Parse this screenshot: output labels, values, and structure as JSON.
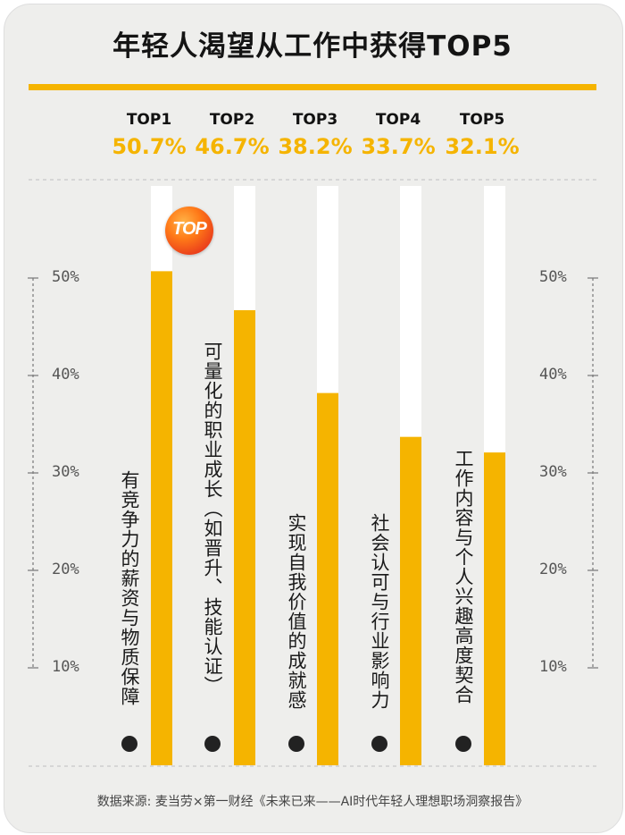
{
  "title": "年轻人渴望从工作中获得TOP5",
  "badge": "TOP",
  "source": "数据来源: 麦当劳×第一财经《未来已来——AI时代年轻人理想职场洞察报告》",
  "colors": {
    "accent": "#f5b400",
    "background": "#eeeeec",
    "track": "#ffffff",
    "badge": "#e8391c"
  },
  "chart_data": {
    "type": "bar",
    "orientation": "vertical",
    "categories": [
      "有竞争力的薪资与物质保障",
      "可量化的职业成长（如晋升、技能认证）",
      "实现自我价值的成就感",
      "社会认可与行业影响力",
      "工作内容与个人兴趣高度契合"
    ],
    "ranks": [
      "TOP1",
      "TOP2",
      "TOP3",
      "TOP4",
      "TOP5"
    ],
    "values": [
      50.7,
      46.7,
      38.2,
      33.7,
      32.1
    ],
    "value_labels": [
      "50.7%",
      "46.7%",
      "38.2%",
      "33.7%",
      "32.1%"
    ],
    "yticks": [
      "10%",
      "20%",
      "30%",
      "40%",
      "50%"
    ],
    "ytick_values": [
      10,
      20,
      30,
      40,
      50
    ],
    "ylim": [
      0,
      60
    ],
    "grid": false
  }
}
